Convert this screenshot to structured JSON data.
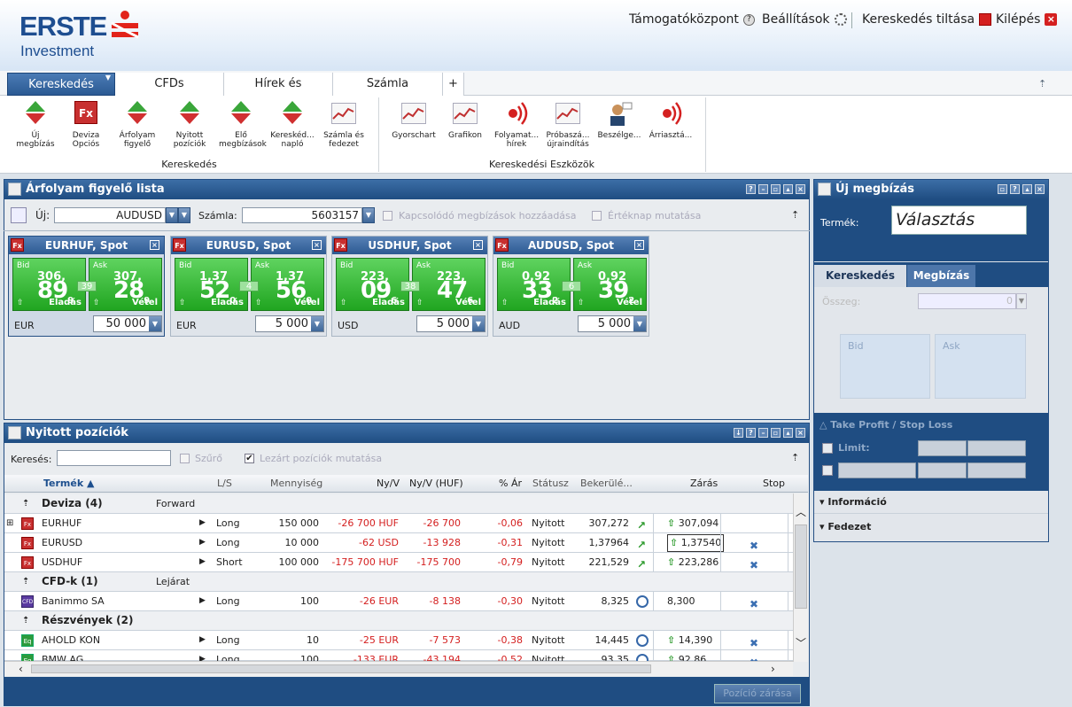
{
  "brand": {
    "name": "ERSTE",
    "sub": "Investment"
  },
  "top_links": {
    "support": "Támogatóközpont",
    "settings": "Beállítások",
    "disable_trading": "Kereskedés tiltása",
    "logout": "Kilépés"
  },
  "main_tabs": [
    {
      "label": "Kereskedés"
    },
    {
      "label": "CFDs"
    },
    {
      "label": "Hírek és"
    },
    {
      "label": "Számla"
    },
    {
      "label": "+"
    }
  ],
  "ribbon": {
    "group1_title": "Kereskedés",
    "group2_title": "Kereskedési Eszközök",
    "buttons1": [
      {
        "label": "Új megbízás"
      },
      {
        "label": "Deviza Opciós"
      },
      {
        "label": "Árfolyam figyelő"
      },
      {
        "label": "Nyitott pozíciók"
      },
      {
        "label": "Elő megbízások"
      },
      {
        "label": "Kereskéd... napló"
      },
      {
        "label": "Számla és fedezet"
      }
    ],
    "buttons2": [
      {
        "label": "Gyorschart"
      },
      {
        "label": "Grafikon"
      },
      {
        "label": "Folyamat... hírek"
      },
      {
        "label": "Próbaszá... újraindítás"
      },
      {
        "label": "Beszélge..."
      },
      {
        "label": "Árriasztá..."
      }
    ]
  },
  "watchlist": {
    "title": "Árfolyam figyelő lista",
    "new_label": "Új:",
    "new_value": "AUDUSD",
    "account_label": "Számla:",
    "account_value": "5603157",
    "related_orders": "Kapcsolódó megbízások hozzáadása",
    "value_date": "Értéknap mutatása",
    "cards": [
      {
        "title": "EURHUF, Spot",
        "bid_big": "306,",
        "bid_pips": "89",
        "bid_sub": "9",
        "ask_big": "307,",
        "ask_pips": "28",
        "ask_sub": "9",
        "spread": "39",
        "ccy": "EUR",
        "amount": "50 000",
        "bid_label": "Bid",
        "ask_label": "Ask",
        "sell": "Eladás",
        "buy": "Vétel"
      },
      {
        "title": "EURUSD, Spot",
        "bid_big": "1,37",
        "bid_pips": "52",
        "bid_sub": "0",
        "ask_big": "1,37",
        "ask_pips": "56",
        "ask_sub": "0",
        "spread": "4",
        "ccy": "EUR",
        "amount": "5 000",
        "bid_label": "Bid",
        "ask_label": "Ask",
        "sell": "Eladás",
        "buy": "Vétel"
      },
      {
        "title": "USDHUF, Spot",
        "bid_big": "223,",
        "bid_pips": "09",
        "bid_sub": "6",
        "ask_big": "223,",
        "ask_pips": "47",
        "ask_sub": "6",
        "spread": "38",
        "ccy": "USD",
        "amount": "5 000",
        "bid_label": "Bid",
        "ask_label": "Ask",
        "sell": "Eladás",
        "buy": "Vétel"
      },
      {
        "title": "AUDUSD, Spot",
        "bid_big": "0,92",
        "bid_pips": "33",
        "bid_sub": "2",
        "ask_big": "0,92",
        "ask_pips": "39",
        "ask_sub": "2",
        "spread": "6",
        "ccy": "AUD",
        "amount": "5 000",
        "bid_label": "Bid",
        "ask_label": "Ask",
        "sell": "Eladás",
        "buy": "Vétel"
      }
    ]
  },
  "positions": {
    "title": "Nyitott pozíciók",
    "search_label": "Keresés:",
    "filter_label": "Szűrő",
    "show_closed_label": "Lezárt pozíciók mutatása",
    "columns": [
      "Termék",
      "L/S",
      "Mennyiség",
      "Ny/V",
      "Ny/V (HUF)",
      "% Ár",
      "Státusz",
      "Bekerülé...",
      "Zárás",
      "Stop"
    ],
    "groups": [
      {
        "name": "Deviza (4)",
        "extra": "Forward"
      },
      {
        "name": "CFD-k (1)",
        "extra": "Lejárat"
      },
      {
        "name": "Részvények (2)",
        "extra": ""
      }
    ],
    "rows": [
      {
        "icon": "Fx",
        "product": "EURHUF",
        "ls": "Long",
        "qty": "150 000",
        "pl": "-26 700 HUF",
        "pl_huf": "-26 700",
        "pct": "-0,06",
        "status": "Nyitott",
        "entry": "307,272",
        "close": "307,094"
      },
      {
        "icon": "Fx",
        "product": "EURUSD",
        "ls": "Long",
        "qty": "10 000",
        "pl": "-62 USD",
        "pl_huf": "-13 928",
        "pct": "-0,31",
        "status": "Nyitott",
        "entry": "1,37964",
        "close": "1,37540"
      },
      {
        "icon": "Fx",
        "product": "USDHUF",
        "ls": "Short",
        "qty": "100 000",
        "pl": "-175 700 HUF",
        "pl_huf": "-175 700",
        "pct": "-0,79",
        "status": "Nyitott",
        "entry": "221,529",
        "close": "223,286"
      },
      {
        "icon": "CFD",
        "product": "Banimmo SA",
        "ls": "Long",
        "qty": "100",
        "pl": "-26 EUR",
        "pl_huf": "-8 138",
        "pct": "-0,30",
        "status": "Nyitott",
        "entry": "8,325",
        "close": "8,300"
      },
      {
        "icon": "Eq",
        "product": "AHOLD KON",
        "ls": "Long",
        "qty": "10",
        "pl": "-25 EUR",
        "pl_huf": "-7 573",
        "pct": "-0,38",
        "status": "Nyitott",
        "entry": "14,445",
        "close": "14,390"
      },
      {
        "icon": "Eq",
        "product": "BMW AG",
        "ls": "Long",
        "qty": "100",
        "pl": "-133 EUR",
        "pl_huf": "-43 194",
        "pct": "-0,52",
        "status": "Nyitott",
        "entry": "93,35",
        "close": "92,86"
      }
    ],
    "close_all": "Pozíció zárása"
  },
  "new_order": {
    "title": "Új megbízás",
    "product_label": "Termék:",
    "product_value": "Választás",
    "tab_trade": "Kereskedés",
    "tab_orders": "Megbízás",
    "amount_label": "Összeg:",
    "amount_value": "0",
    "bid": "Bid",
    "ask": "Ask",
    "tpsl": "Take Profit / Stop Loss",
    "limit": "Limit:",
    "info": "Információ",
    "margin": "Fedezet"
  },
  "colors": {
    "brand": "#1e4e90",
    "header": "#1f4d82",
    "bid_green": "#20a520",
    "negative": "#d41f1f"
  }
}
